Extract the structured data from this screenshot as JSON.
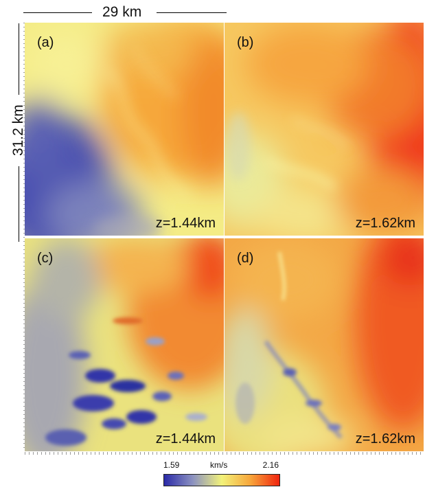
{
  "scale": {
    "horizontal_label": "29 km",
    "vertical_label": "31.2 km"
  },
  "panels": [
    {
      "label": "(a)",
      "depth": "z=1.44km"
    },
    {
      "label": "(b)",
      "depth": "z=1.62km"
    },
    {
      "label": "(c)",
      "depth": "z=1.44km"
    },
    {
      "label": "(d)",
      "depth": "z=1.62km"
    }
  ],
  "colorbar": {
    "min": "1.59",
    "max": "2.16",
    "unit": "km/s",
    "colors": [
      "#2a2aa8",
      "#8c92c0",
      "#f2f27a",
      "#f7a53a",
      "#f0240e"
    ]
  }
}
